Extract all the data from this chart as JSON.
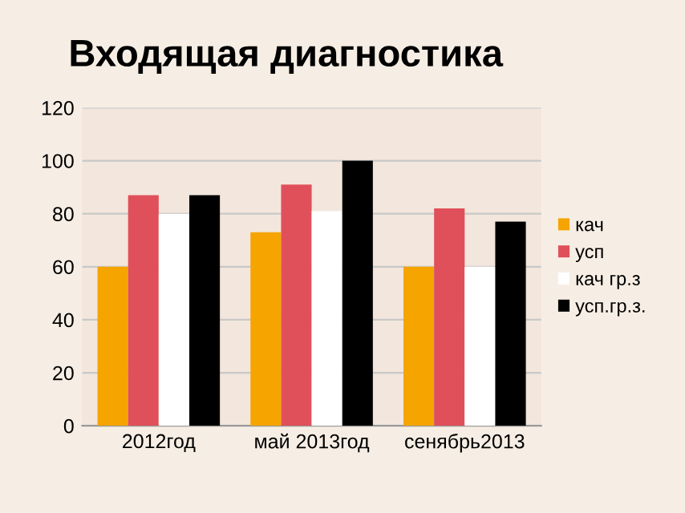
{
  "chart_data": {
    "type": "bar",
    "title": "Входящая диагностика",
    "categories": [
      "2012год",
      "май 2013год",
      "сенябрь2013"
    ],
    "series": [
      {
        "name": "кач",
        "color": "#f5a400",
        "values": [
          60,
          73,
          60
        ]
      },
      {
        "name": "усп",
        "color": "#e0505a",
        "values": [
          87,
          91,
          82
        ]
      },
      {
        "name": "кач гр.з",
        "color": "#ffffff",
        "values": [
          80,
          81,
          60
        ]
      },
      {
        "name": "усп.гр.з.",
        "color": "#000000",
        "values": [
          87,
          100,
          77
        ]
      }
    ],
    "ylim": [
      0,
      120
    ],
    "yticks": [
      0,
      20,
      40,
      60,
      80,
      100,
      120
    ],
    "grid": "y",
    "legend": "right"
  }
}
